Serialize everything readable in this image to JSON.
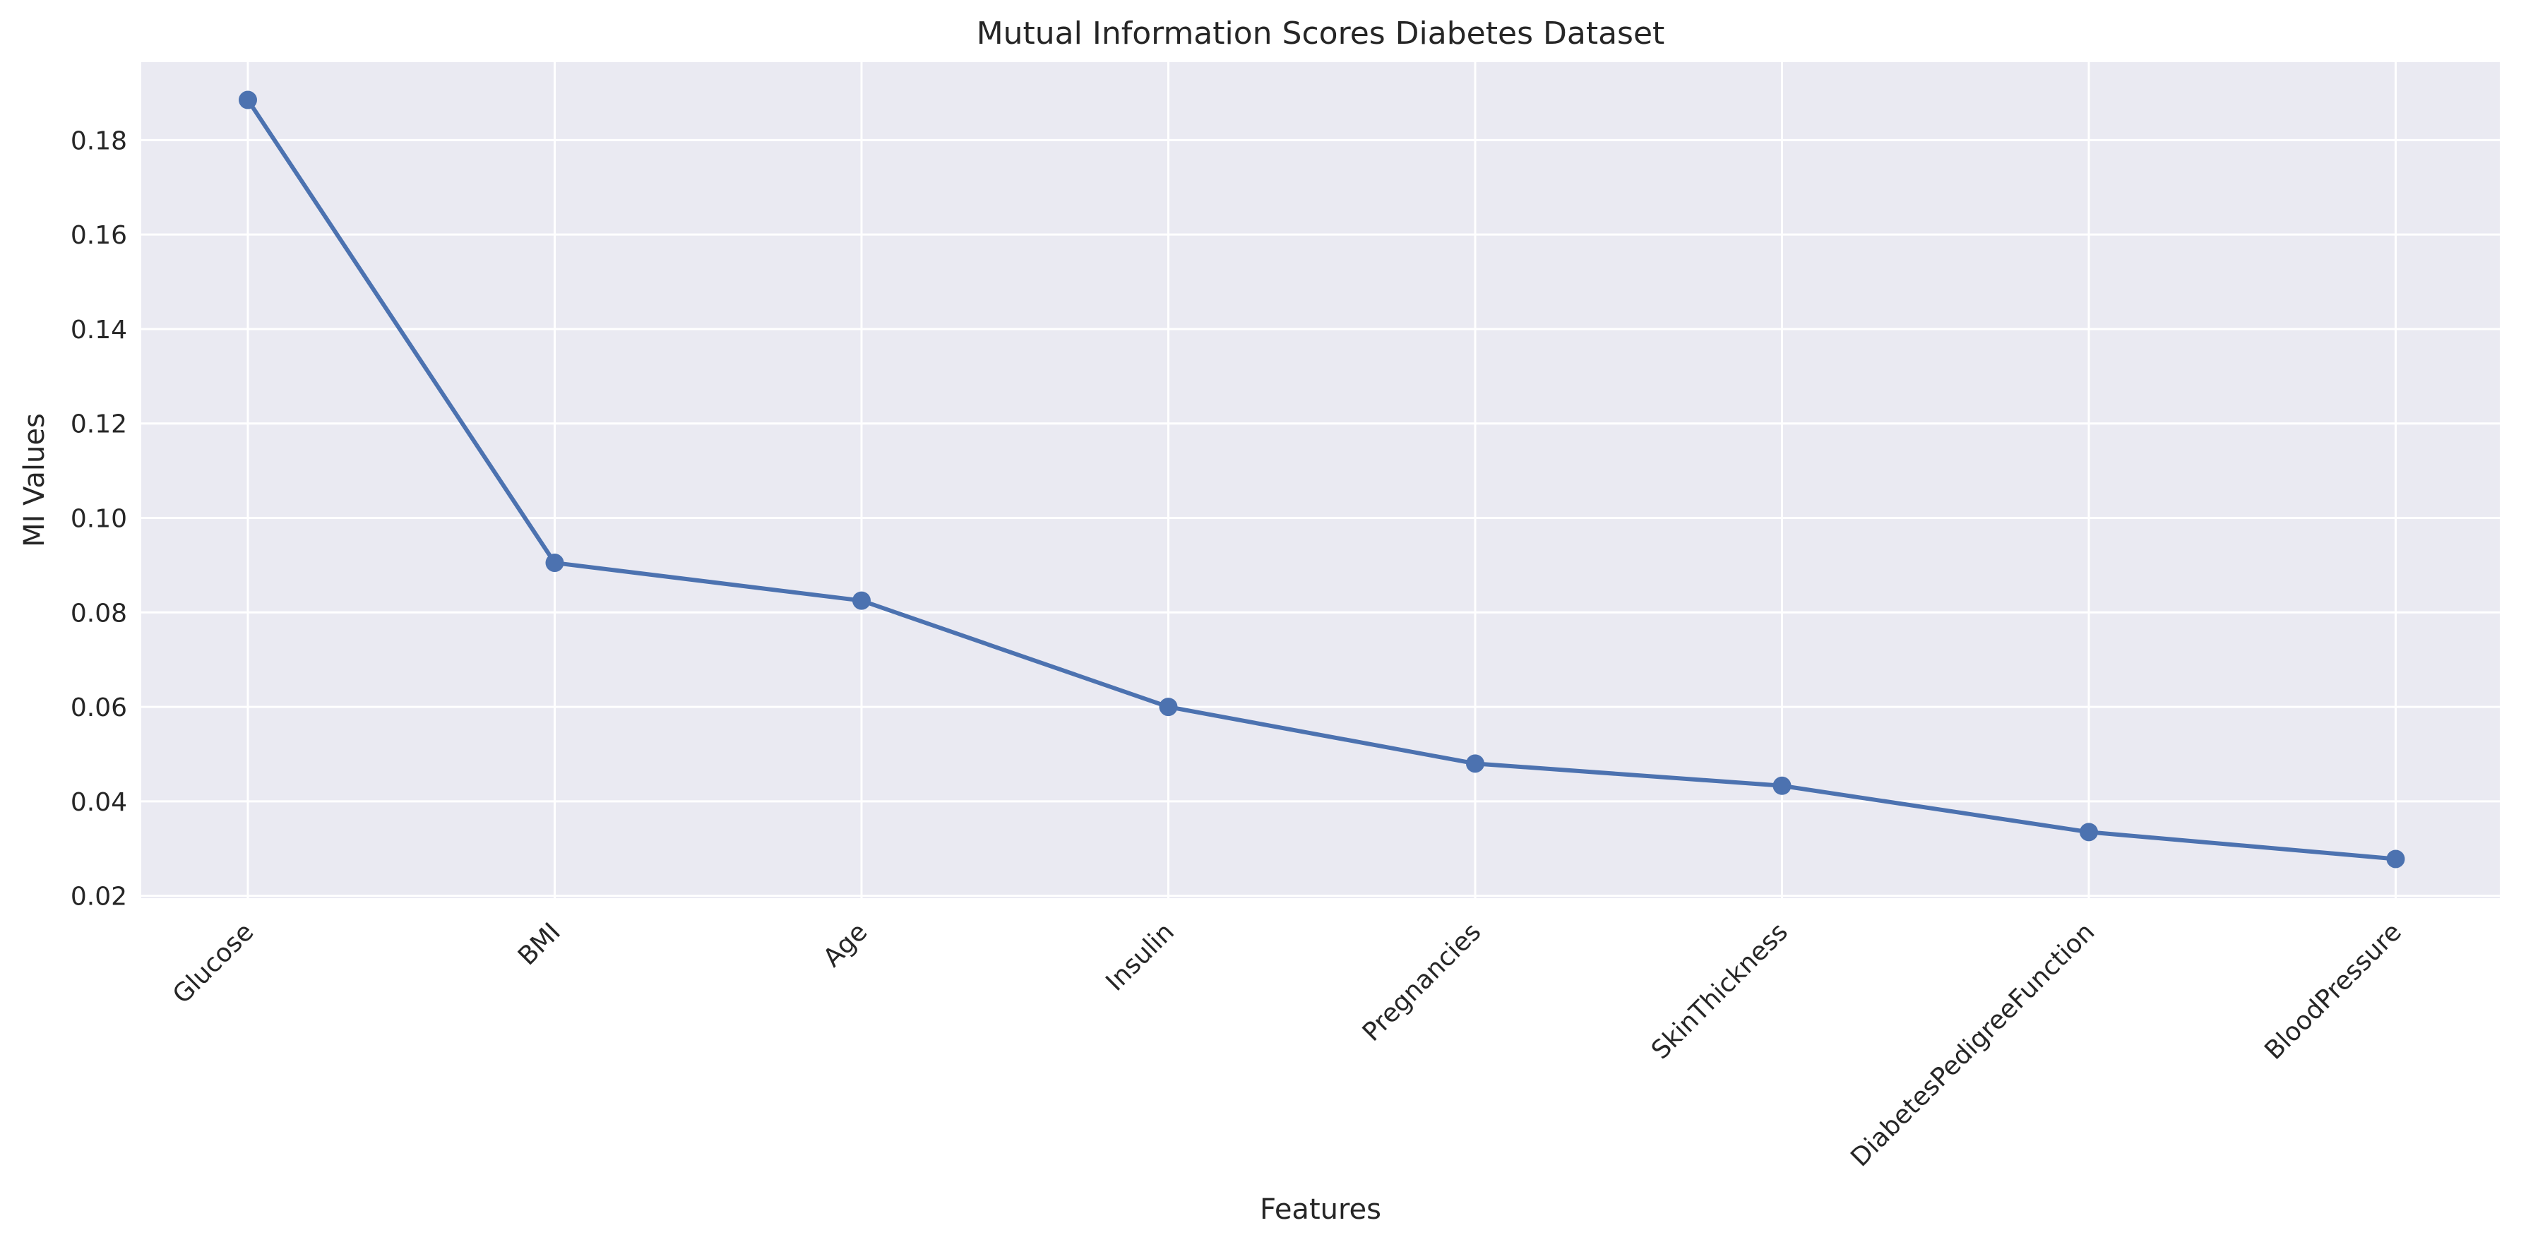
{
  "chart_data": {
    "type": "line",
    "title": "Mutual Information Scores Diabetes Dataset",
    "xlabel": "Features",
    "ylabel": "MI Values",
    "categories": [
      "Glucose",
      "BMI",
      "Age",
      "Insulin",
      "Pregnancies",
      "SkinThickness",
      "DiabetesPedigreeFunction",
      "BloodPressure"
    ],
    "series": [
      {
        "values": [
          0.1885,
          0.0905,
          0.0825,
          0.06,
          0.048,
          0.0433,
          0.0335,
          0.0278
        ]
      }
    ],
    "ylim": [
      0.0195,
      0.1965
    ],
    "yticks": [
      0.02,
      0.04,
      0.06,
      0.08,
      0.1,
      0.12,
      0.14,
      0.16,
      0.18
    ],
    "ytick_labels": [
      "0.02",
      "0.04",
      "0.06",
      "0.08",
      "0.10",
      "0.12",
      "0.14",
      "0.16",
      "0.18"
    ],
    "grid": true,
    "legend": "none",
    "colors": {
      "background": "#EAEAF2",
      "grid": "#FFFFFF",
      "line": "#4C72B0",
      "text": "#262626"
    }
  }
}
